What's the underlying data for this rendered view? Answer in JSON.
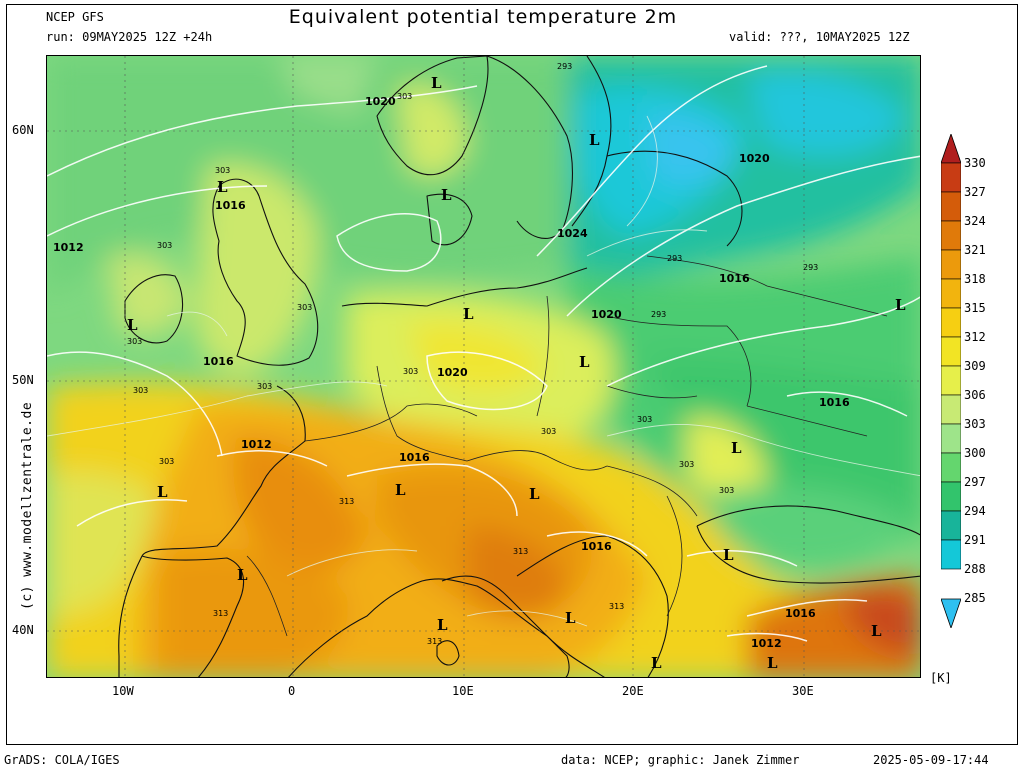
{
  "header": {
    "model": "NCEP GFS",
    "run": "run: 09MAY2025 12Z +24h",
    "title": "Equivalent potential temperature 2m",
    "valid": "valid: ???, 10MAY2025 12Z"
  },
  "watermark": "(c) www.modellzentrale.de",
  "footer": {
    "left": "GrADS: COLA/IGES",
    "center": "data: NCEP; graphic: Janek Zimmer",
    "right": "2025-05-09-17:44"
  },
  "axes": {
    "lat_labels": [
      "60N",
      "50N",
      "40N"
    ],
    "lon_labels": [
      "10W",
      "0",
      "10E",
      "20E",
      "30E"
    ]
  },
  "colorbar": {
    "unit": "[K]",
    "levels": [
      "330",
      "327",
      "324",
      "321",
      "318",
      "315",
      "312",
      "309",
      "306",
      "303",
      "300",
      "297",
      "294",
      "291",
      "288",
      "285"
    ],
    "colors": [
      "#b01e1e",
      "#c83c14",
      "#d45c0a",
      "#e07a0a",
      "#ec9a0c",
      "#f2b40e",
      "#f6cf12",
      "#f2e424",
      "#e6ef4a",
      "#c8ea74",
      "#9ee48a",
      "#64d66e",
      "#32c46c",
      "#18b49a",
      "#14c8d8",
      "#2ec0f0"
    ]
  },
  "pressure_labels": [
    {
      "text": "1020"
    },
    {
      "text": "1016"
    },
    {
      "text": "1012"
    },
    {
      "text": "1016"
    },
    {
      "text": "1012"
    },
    {
      "text": "1016"
    },
    {
      "text": "1020"
    },
    {
      "text": "1024"
    },
    {
      "text": "1020"
    },
    {
      "text": "1016"
    },
    {
      "text": "1020"
    },
    {
      "text": "1016"
    },
    {
      "text": "1016"
    },
    {
      "text": "1016"
    },
    {
      "text": "1012"
    }
  ],
  "low_markers": [
    "L",
    "L",
    "L",
    "L",
    "L",
    "L",
    "L",
    "L",
    "L",
    "L",
    "L",
    "L",
    "L",
    "L",
    "L",
    "L",
    "L",
    "L",
    "L"
  ],
  "theta_labels": [
    "303",
    "303",
    "303",
    "303",
    "303",
    "303",
    "303",
    "303",
    "303",
    "293",
    "293",
    "293",
    "293",
    "313",
    "313",
    "313",
    "313",
    "313",
    "303",
    "303",
    "303",
    "303"
  ]
}
